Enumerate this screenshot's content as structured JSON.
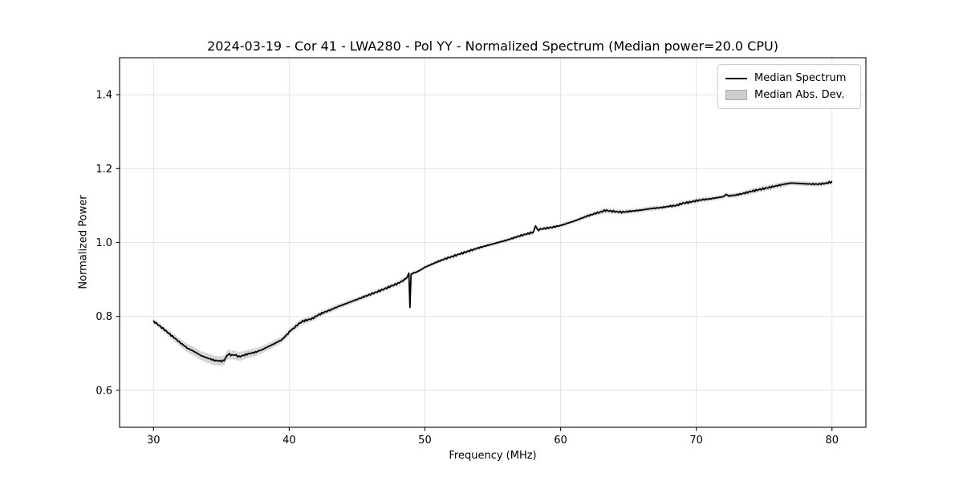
{
  "figure": {
    "title": "2024-03-19 - Cor 41 - LWA280 - Pol YY - Normalized Spectrum (Median power=20.0 CPU)",
    "xlabel": "Frequency (MHz)",
    "ylabel": "Normalized Power"
  },
  "legend": {
    "items": [
      {
        "label": "Median Spectrum",
        "type": "line",
        "color": "#000000"
      },
      {
        "label": "Median Abs. Dev.",
        "type": "patch",
        "color": "#cccccc"
      }
    ]
  },
  "colors": {
    "line": "#000000",
    "band": "#bbbbbb",
    "grid": "#e3e3e3",
    "spine": "#1a1a1a",
    "tick": "#1a1a1a",
    "background": "#ffffff"
  },
  "chart_data": {
    "type": "line",
    "title": "2024-03-19 - Cor 41 - LWA280 - Pol YY - Normalized Spectrum (Median power=20.0 CPU)",
    "xlabel": "Frequency (MHz)",
    "ylabel": "Normalized Power",
    "xlim": [
      27.5,
      82.5
    ],
    "ylim": [
      0.5,
      1.5
    ],
    "xticks": [
      30,
      40,
      50,
      60,
      70,
      80
    ],
    "yticks": [
      0.6,
      0.8,
      1.0,
      1.2,
      1.4
    ],
    "xticklabels": [
      "30",
      "40",
      "50",
      "60",
      "70",
      "80"
    ],
    "yticklabels": [
      "0.6",
      "0.8",
      "1.0",
      "1.2",
      "1.4"
    ],
    "grid": true,
    "legend_position": "upper right",
    "x": [
      30.0,
      30.5,
      31.0,
      31.5,
      32.0,
      32.5,
      33.0,
      33.5,
      34.0,
      34.5,
      35.0,
      35.2,
      35.5,
      35.8,
      36.0,
      36.3,
      36.5,
      37.0,
      37.5,
      38.0,
      38.5,
      39.0,
      39.5,
      39.7,
      39.9,
      40.1,
      40.4,
      40.7,
      41.0,
      41.3,
      41.7,
      42.0,
      42.5,
      43.0,
      43.5,
      44.0,
      44.5,
      45.0,
      45.5,
      46.0,
      46.5,
      47.0,
      47.5,
      48.0,
      48.4,
      48.7,
      48.82,
      48.9,
      48.98,
      49.1,
      49.3,
      49.5,
      50.0,
      50.5,
      51.0,
      51.5,
      52.0,
      52.5,
      53.0,
      53.5,
      54.0,
      54.5,
      55.0,
      55.5,
      56.0,
      56.5,
      57.0,
      57.5,
      58.0,
      58.15,
      58.3,
      58.5,
      59.0,
      59.5,
      60.0,
      60.5,
      61.0,
      61.5,
      62.0,
      62.5,
      63.0,
      63.3,
      63.7,
      64.0,
      64.5,
      65.0,
      65.5,
      66.0,
      66.5,
      67.0,
      67.5,
      68.0,
      68.5,
      69.0,
      69.5,
      70.0,
      70.5,
      71.0,
      71.5,
      72.0,
      72.2,
      72.4,
      73.0,
      73.5,
      74.0,
      74.5,
      75.0,
      75.5,
      76.0,
      76.5,
      77.0,
      77.5,
      78.0,
      78.5,
      79.0,
      79.5,
      80.0
    ],
    "series": [
      {
        "name": "Median Spectrum",
        "color": "#000000",
        "style": "line",
        "y": [
          0.787,
          0.773,
          0.758,
          0.743,
          0.728,
          0.714,
          0.705,
          0.694,
          0.687,
          0.681,
          0.679,
          0.681,
          0.698,
          0.695,
          0.696,
          0.691,
          0.693,
          0.699,
          0.703,
          0.71,
          0.719,
          0.728,
          0.738,
          0.746,
          0.753,
          0.762,
          0.77,
          0.78,
          0.787,
          0.79,
          0.794,
          0.801,
          0.81,
          0.817,
          0.825,
          0.832,
          0.839,
          0.846,
          0.853,
          0.86,
          0.867,
          0.874,
          0.882,
          0.889,
          0.897,
          0.906,
          0.916,
          0.825,
          0.912,
          0.917,
          0.919,
          0.922,
          0.933,
          0.941,
          0.949,
          0.956,
          0.962,
          0.968,
          0.974,
          0.98,
          0.986,
          0.991,
          0.996,
          1.001,
          1.006,
          1.012,
          1.018,
          1.023,
          1.028,
          1.043,
          1.033,
          1.036,
          1.039,
          1.042,
          1.046,
          1.052,
          1.058,
          1.065,
          1.072,
          1.078,
          1.083,
          1.087,
          1.085,
          1.084,
          1.082,
          1.084,
          1.086,
          1.088,
          1.091,
          1.093,
          1.095,
          1.098,
          1.1,
          1.106,
          1.109,
          1.113,
          1.116,
          1.118,
          1.121,
          1.124,
          1.13,
          1.126,
          1.129,
          1.133,
          1.138,
          1.142,
          1.146,
          1.15,
          1.154,
          1.158,
          1.161,
          1.16,
          1.159,
          1.158,
          1.158,
          1.16,
          1.164
        ]
      },
      {
        "name": "Median Abs. Dev.",
        "color": "#bbbbbb",
        "style": "band",
        "halfwidth": [
          0.006,
          0.007,
          0.008,
          0.009,
          0.01,
          0.011,
          0.012,
          0.012,
          0.013,
          0.013,
          0.013,
          0.013,
          0.013,
          0.012,
          0.012,
          0.012,
          0.012,
          0.011,
          0.011,
          0.01,
          0.009,
          0.009,
          0.008,
          0.008,
          0.008,
          0.008,
          0.008,
          0.008,
          0.008,
          0.008,
          0.007,
          0.007,
          0.007,
          0.007,
          0.007,
          0.006,
          0.006,
          0.006,
          0.006,
          0.006,
          0.006,
          0.006,
          0.006,
          0.006,
          0.006,
          0.006,
          0.005,
          0.005,
          0.005,
          0.005,
          0.005,
          0.005,
          0.005,
          0.005,
          0.005,
          0.005,
          0.005,
          0.005,
          0.005,
          0.005,
          0.005,
          0.005,
          0.005,
          0.005,
          0.005,
          0.005,
          0.005,
          0.005,
          0.005,
          0.005,
          0.005,
          0.005,
          0.005,
          0.005,
          0.005,
          0.005,
          0.005,
          0.005,
          0.006,
          0.006,
          0.007,
          0.007,
          0.007,
          0.006,
          0.006,
          0.006,
          0.006,
          0.006,
          0.006,
          0.006,
          0.005,
          0.005,
          0.006,
          0.006,
          0.006,
          0.006,
          0.006,
          0.006,
          0.006,
          0.006,
          0.006,
          0.006,
          0.006,
          0.006,
          0.007,
          0.007,
          0.007,
          0.007,
          0.007,
          0.007,
          0.006,
          0.006,
          0.006,
          0.006,
          0.006,
          0.006,
          0.006
        ]
      }
    ]
  }
}
